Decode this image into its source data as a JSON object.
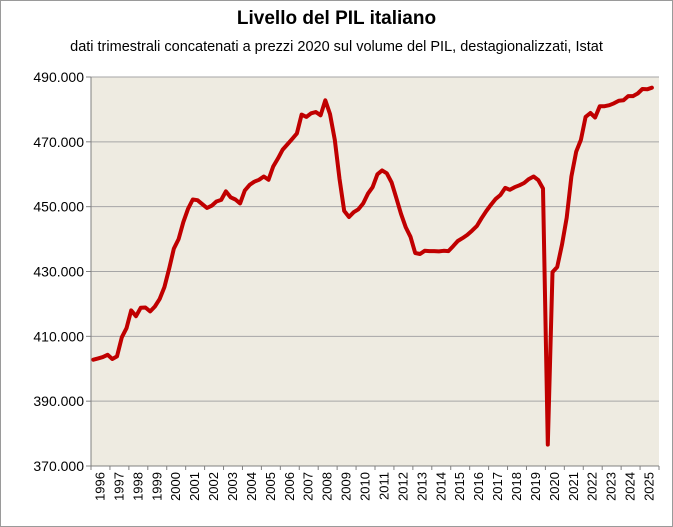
{
  "chart_data": {
    "type": "line",
    "title": "Livello del PIL italiano",
    "subtitle": "dati trimestrali concatenati a prezzi 2020 sul volume del PIL, destagionalizzati, Istat",
    "xlabel": "",
    "ylabel": "",
    "ylim": [
      370000,
      490000
    ],
    "yticks": [
      "370.000",
      "390.000",
      "410.000",
      "430.000",
      "450.000",
      "470.000",
      "490.000"
    ],
    "ytick_values": [
      370000,
      390000,
      410000,
      430000,
      450000,
      470000,
      490000
    ],
    "xticks": [
      "1996",
      "1997",
      "1998",
      "1999",
      "2000",
      "2001",
      "2002",
      "2003",
      "2004",
      "2005",
      "2006",
      "2007",
      "2008",
      "2009",
      "2010",
      "2011",
      "2012",
      "2013",
      "2014",
      "2015",
      "2016",
      "2017",
      "2018",
      "2019",
      "2020",
      "2021",
      "2022",
      "2023",
      "2024",
      "2025"
    ],
    "grid": "horizontal",
    "background": "#eeebe1",
    "line_color": "#c00000",
    "series": [
      {
        "name": "",
        "x": [
          "1996-Q1",
          "1996-Q2",
          "1996-Q3",
          "1996-Q4",
          "1997-Q1",
          "1997-Q2",
          "1997-Q3",
          "1997-Q4",
          "1998-Q1",
          "1998-Q2",
          "1998-Q3",
          "1998-Q4",
          "1999-Q1",
          "1999-Q2",
          "1999-Q3",
          "1999-Q4",
          "2000-Q1",
          "2000-Q2",
          "2000-Q3",
          "2000-Q4",
          "2001-Q1",
          "2001-Q2",
          "2001-Q3",
          "2001-Q4",
          "2002-Q1",
          "2002-Q2",
          "2002-Q3",
          "2002-Q4",
          "2003-Q1",
          "2003-Q2",
          "2003-Q3",
          "2003-Q4",
          "2004-Q1",
          "2004-Q2",
          "2004-Q3",
          "2004-Q4",
          "2005-Q1",
          "2005-Q2",
          "2005-Q3",
          "2005-Q4",
          "2006-Q1",
          "2006-Q2",
          "2006-Q3",
          "2006-Q4",
          "2007-Q1",
          "2007-Q2",
          "2007-Q3",
          "2007-Q4",
          "2008-Q1",
          "2008-Q2",
          "2008-Q3",
          "2008-Q4",
          "2009-Q1",
          "2009-Q2",
          "2009-Q3",
          "2009-Q4",
          "2010-Q1",
          "2010-Q2",
          "2010-Q3",
          "2010-Q4",
          "2011-Q1",
          "2011-Q2",
          "2011-Q3",
          "2011-Q4",
          "2012-Q1",
          "2012-Q2",
          "2012-Q3",
          "2012-Q4",
          "2013-Q1",
          "2013-Q2",
          "2013-Q3",
          "2013-Q4",
          "2014-Q1",
          "2014-Q2",
          "2014-Q3",
          "2014-Q4",
          "2015-Q1",
          "2015-Q2",
          "2015-Q3",
          "2015-Q4",
          "2016-Q1",
          "2016-Q2",
          "2016-Q3",
          "2016-Q4",
          "2017-Q1",
          "2017-Q2",
          "2017-Q3",
          "2017-Q4",
          "2018-Q1",
          "2018-Q2",
          "2018-Q3",
          "2018-Q4",
          "2019-Q1",
          "2019-Q2",
          "2019-Q3",
          "2019-Q4",
          "2020-Q1",
          "2020-Q2",
          "2020-Q3",
          "2020-Q4",
          "2021-Q1",
          "2021-Q2",
          "2021-Q3",
          "2021-Q4",
          "2022-Q1",
          "2022-Q2",
          "2022-Q3",
          "2022-Q4",
          "2023-Q1",
          "2023-Q2",
          "2023-Q3",
          "2023-Q4",
          "2024-Q1",
          "2024-Q2",
          "2024-Q3",
          "2024-Q4",
          "2025-Q1",
          "2025-Q2",
          "2025-Q3"
        ],
        "values": [
          402800,
          403200,
          403600,
          404300,
          403000,
          403800,
          409700,
          412500,
          418000,
          416200,
          418800,
          418900,
          417700,
          419200,
          421500,
          425200,
          430800,
          437000,
          440000,
          445200,
          449300,
          452200,
          452000,
          450800,
          449600,
          450300,
          451600,
          452100,
          454700,
          452900,
          452200,
          451000,
          455000,
          456700,
          457700,
          458300,
          459300,
          458300,
          462400,
          464900,
          467600,
          469200,
          470900,
          472600,
          478400,
          477700,
          478800,
          479200,
          478200,
          482800,
          478600,
          470600,
          458600,
          448700,
          446800,
          448300,
          449200,
          451000,
          454000,
          456000,
          460000,
          461200,
          460300,
          457500,
          452700,
          447800,
          443600,
          440700,
          435700,
          435400,
          436400,
          436300,
          436300,
          436200,
          436400,
          436300,
          437800,
          439400,
          440300,
          441300,
          442600,
          444000,
          446400,
          448600,
          450600,
          452400,
          453600,
          455800,
          455200,
          456000,
          456600,
          457300,
          458500,
          459300,
          458200,
          455600,
          376600,
          429800,
          431400,
          438300,
          446600,
          459300,
          467000,
          470600,
          477700,
          478900,
          477500,
          481000,
          481000,
          481300,
          481900,
          482700,
          482800,
          484100,
          484100,
          484900,
          486300,
          486200,
          486700
        ]
      }
    ]
  }
}
